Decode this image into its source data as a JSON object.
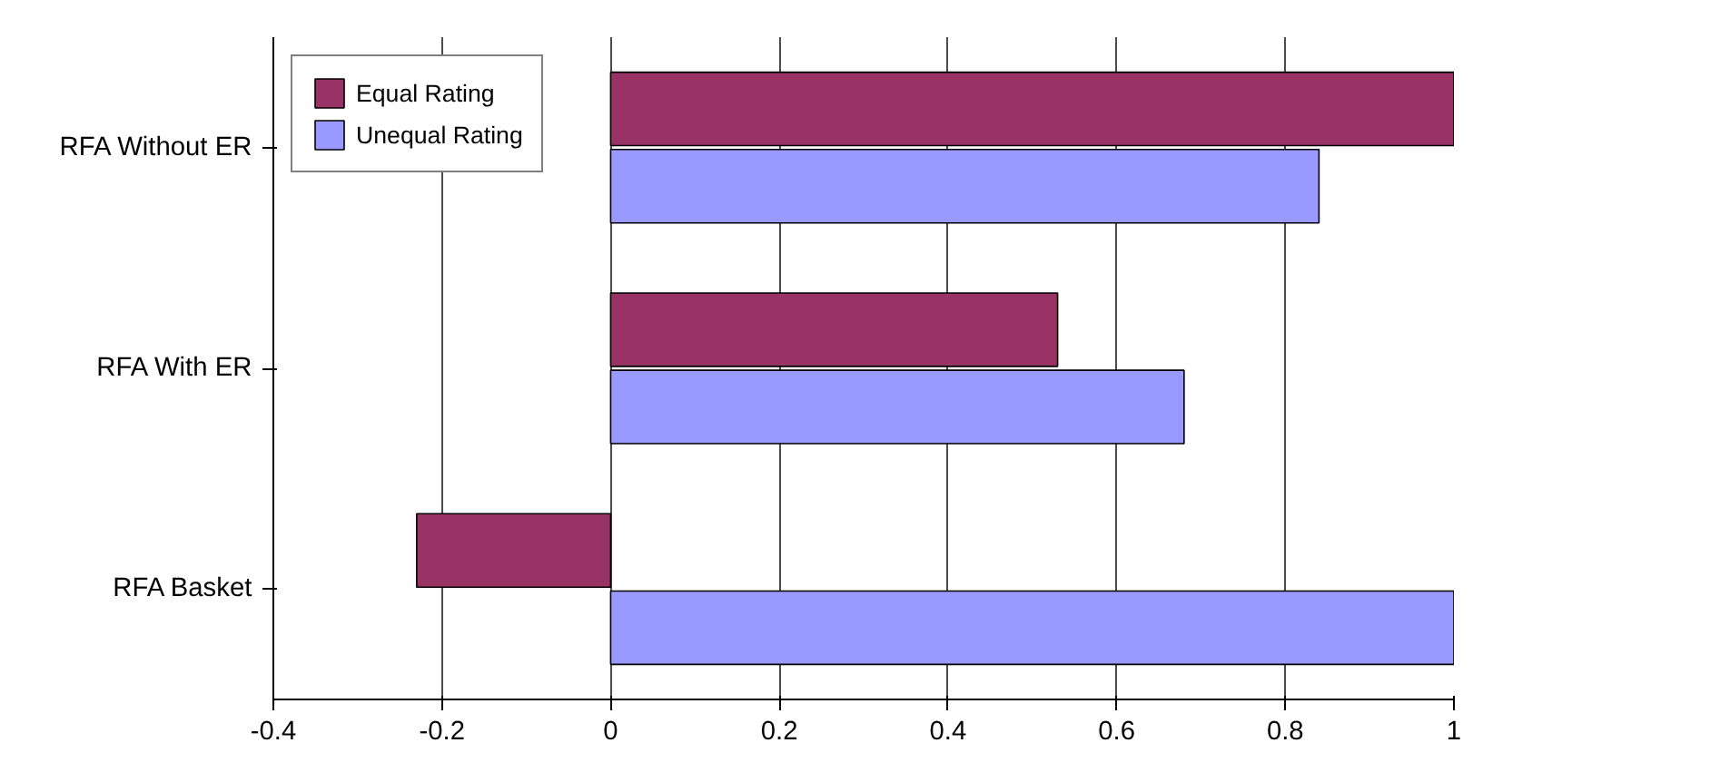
{
  "chart_data": {
    "type": "bar",
    "orientation": "horizontal",
    "categories": [
      "RFA Without ER",
      "RFA With ER",
      "RFA Basket"
    ],
    "series": [
      {
        "name": "Equal Rating",
        "color": "#993366",
        "values": [
          1.0,
          0.53,
          -0.23
        ]
      },
      {
        "name": "Unequal Rating",
        "color": "#9999ff",
        "values": [
          0.84,
          0.68,
          1.0
        ]
      }
    ],
    "xlim": [
      -0.4,
      1
    ],
    "xticks": [
      -0.4,
      -0.2,
      0,
      0.2,
      0.4,
      0.6,
      0.8,
      1
    ],
    "grid": "x",
    "legend": "top left"
  }
}
